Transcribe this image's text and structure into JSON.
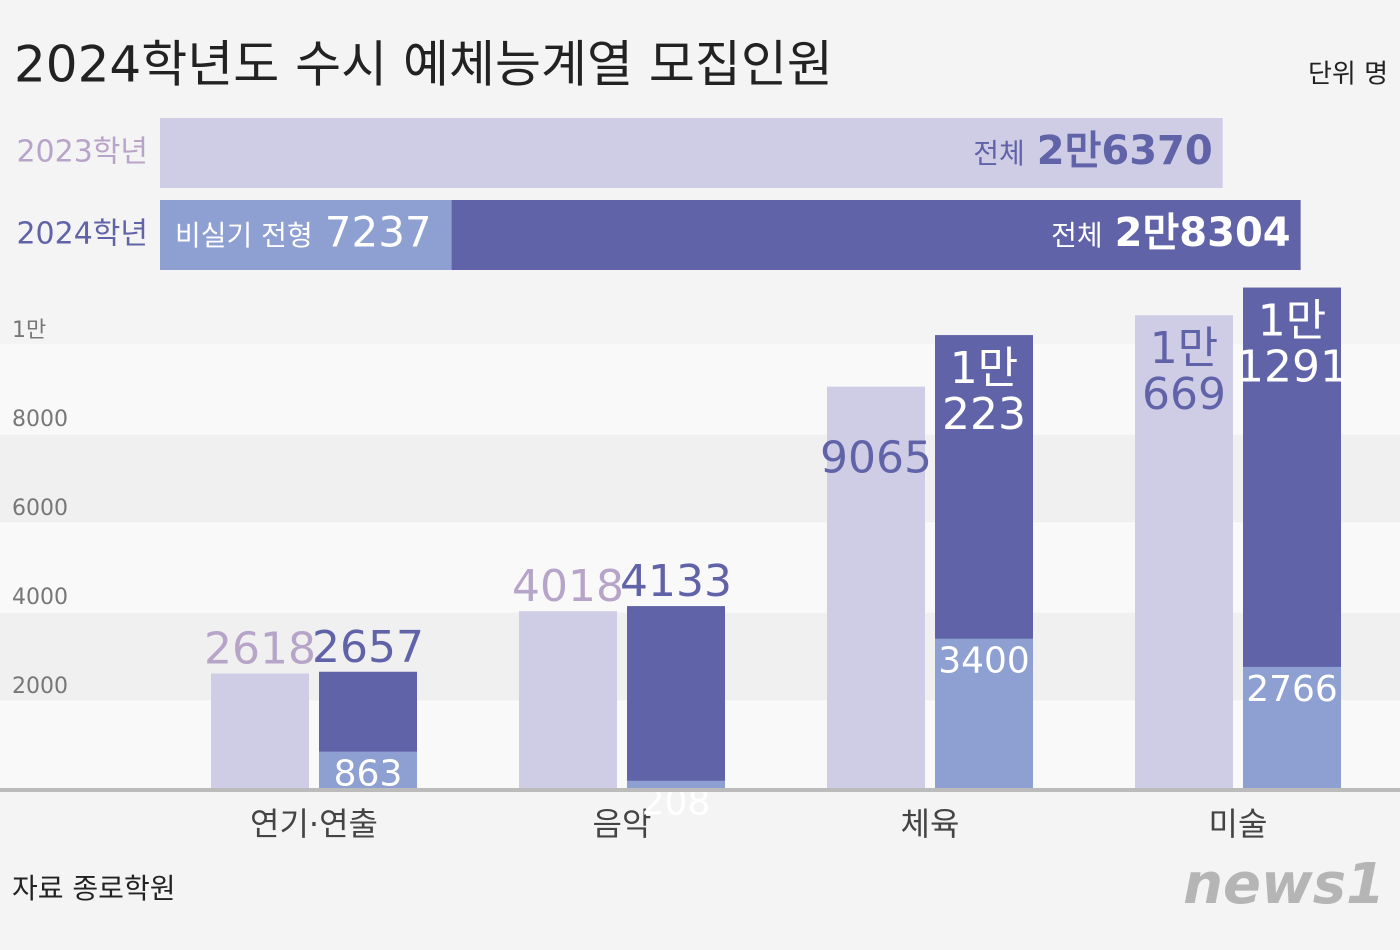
{
  "title": "2024학년도 수시 예체능계열 모집인원",
  "unit": "단위 명",
  "source": "자료 종로학원",
  "logo": "news1",
  "chart_data": [
    {
      "type": "hbar",
      "categories": [
        "2023학년",
        "2024학년"
      ],
      "total_label": "전체",
      "values": [
        26370,
        28304
      ],
      "value_labels": [
        "2만6370",
        "2만8304"
      ],
      "colors": [
        "#cfcce6",
        "#6063a8"
      ],
      "part_label": "비실기 전형",
      "part_values": [
        null,
        7237
      ],
      "part_color": "#8e9fd1"
    },
    {
      "type": "bar",
      "categories": [
        "연기·연출",
        "음악",
        "체육",
        "미술"
      ],
      "series": [
        {
          "color": "#cfcce6",
          "values": [
            2618,
            4018,
            9065,
            10669
          ],
          "value_labels": [
            "2618",
            "4018",
            "9065",
            "1만 669"
          ]
        },
        {
          "color": "#6063a8",
          "values": [
            2657,
            4133,
            10223,
            11291
          ],
          "value_labels": [
            "2657",
            "4133",
            "1만 223",
            "1만 1291"
          ],
          "part_values": [
            863,
            208,
            3400,
            2766
          ],
          "part_color": "#8e9fd1"
        }
      ],
      "ylim": [
        0,
        11000
      ],
      "yticks": [
        2000,
        4000,
        6000,
        8000,
        {
          "value": 10000,
          "label": "1만"
        }
      ],
      "grid": true
    }
  ]
}
